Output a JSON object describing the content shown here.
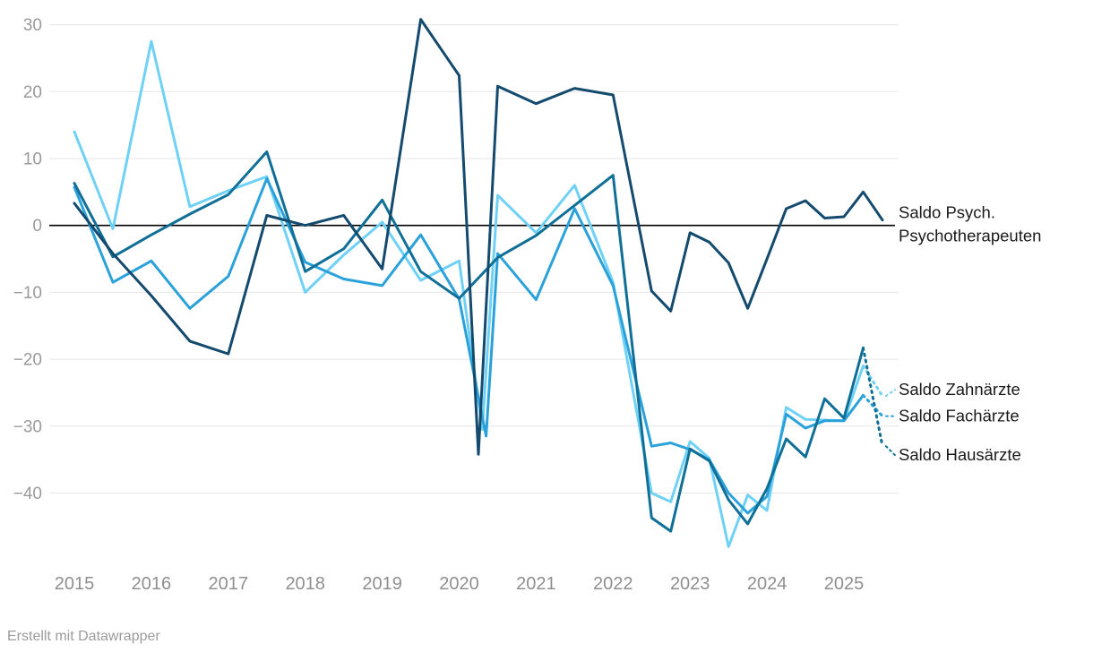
{
  "footer": {
    "attribution": "Erstellt mit Datawrapper"
  },
  "colors": {
    "background": "#ffffff",
    "gridline": "#e6e6e6",
    "zero_line": "#000000",
    "axis_tick_label": "#9a9a9a",
    "x_tick_label": "#8f8f8f",
    "series_label_text": "#1a1a1a"
  },
  "chart_data": {
    "type": "line",
    "title": "",
    "legend_position": "right-direct-labels",
    "grid": true,
    "x_axis": {
      "tick_values": [
        2015,
        2016,
        2017,
        2018,
        2019,
        2020,
        2021,
        2022,
        2023,
        2024,
        2025
      ],
      "tick_labels": [
        "2015",
        "2016",
        "2017",
        "2018",
        "2019",
        "2020",
        "2021",
        "2022",
        "2023",
        "2024",
        "2025"
      ],
      "range": [
        2014.67,
        2025.85
      ]
    },
    "y_axis": {
      "tick_values": [
        30,
        20,
        10,
        0,
        -10,
        -20,
        -30,
        -40
      ],
      "tick_labels": [
        "30",
        "20",
        "10",
        "0",
        "−10",
        "−20",
        "−30",
        "−40"
      ],
      "range": [
        -49,
        31
      ],
      "zero_line": true
    },
    "series": [
      {
        "id": "zahnaerzte",
        "name": "Saldo Zahnärzte",
        "label_lines": [
          "Saldo Zahnärzte"
        ],
        "color": "#6FD1F6",
        "dashed_last_segment": true,
        "points": [
          [
            2015,
            14
          ],
          [
            2015.5,
            -0.5
          ],
          [
            2016,
            27.5
          ],
          [
            2016.5,
            2.8
          ],
          [
            2017,
            5.2
          ],
          [
            2017.5,
            7.3
          ],
          [
            2018,
            -10
          ],
          [
            2018.5,
            -4.4
          ],
          [
            2019,
            0.5
          ],
          [
            2019.5,
            -8.2
          ],
          [
            2020,
            -5.3
          ],
          [
            2020.3,
            -30.5
          ],
          [
            2020.5,
            4.5
          ],
          [
            2021,
            -1.1
          ],
          [
            2021.5,
            6
          ],
          [
            2022,
            -8.5
          ],
          [
            2022.5,
            -40
          ],
          [
            2022.75,
            -41.3
          ],
          [
            2023,
            -32.3
          ],
          [
            2023.25,
            -34.8
          ],
          [
            2023.5,
            -48
          ],
          [
            2023.75,
            -40.3
          ],
          [
            2024,
            -42.6
          ],
          [
            2024.25,
            -27.2
          ],
          [
            2024.5,
            -29
          ],
          [
            2025,
            -29.2
          ],
          [
            2025.25,
            -21
          ],
          [
            2025.5,
            -25.5
          ]
        ]
      },
      {
        "id": "fachaerzte",
        "name": "Saldo Fachärzte",
        "label_lines": [
          "Saldo Fachärzte"
        ],
        "color": "#2BA1DA",
        "dashed_last_segment": true,
        "points": [
          [
            2015,
            5.7
          ],
          [
            2015.5,
            -8.5
          ],
          [
            2016,
            -5.3
          ],
          [
            2016.5,
            -12.4
          ],
          [
            2017,
            -7.6
          ],
          [
            2017.5,
            7
          ],
          [
            2018,
            -5.5
          ],
          [
            2018.5,
            -8
          ],
          [
            2019,
            -9
          ],
          [
            2019.5,
            -1.4
          ],
          [
            2020,
            -11
          ],
          [
            2020.35,
            -31.5
          ],
          [
            2020.5,
            -4.2
          ],
          [
            2021,
            -11.1
          ],
          [
            2021.5,
            2.5
          ],
          [
            2022,
            -9
          ],
          [
            2022.5,
            -33
          ],
          [
            2022.75,
            -32.5
          ],
          [
            2023,
            -33.5
          ],
          [
            2023.25,
            -35
          ],
          [
            2023.5,
            -40
          ],
          [
            2023.75,
            -43
          ],
          [
            2024,
            -40.5
          ],
          [
            2024.25,
            -28.2
          ],
          [
            2024.5,
            -30.3
          ],
          [
            2024.75,
            -29.2
          ],
          [
            2025,
            -29.2
          ],
          [
            2025.25,
            -25.4
          ],
          [
            2025.5,
            -28.5
          ]
        ]
      },
      {
        "id": "hausaerzte",
        "name": "Saldo Hausärzte",
        "label_lines": [
          "Saldo Hausärzte"
        ],
        "color": "#0F6F96",
        "dashed_last_segment": true,
        "points": [
          [
            2015,
            6.3
          ],
          [
            2015.5,
            -4.7
          ],
          [
            2016,
            -1.4
          ],
          [
            2016.5,
            1.7
          ],
          [
            2017,
            4.6
          ],
          [
            2017.5,
            11
          ],
          [
            2018,
            -6.9
          ],
          [
            2018.5,
            -3.5
          ],
          [
            2019,
            3.8
          ],
          [
            2019.5,
            -6.9
          ],
          [
            2020,
            -10.9
          ],
          [
            2020.5,
            -4.8
          ],
          [
            2021,
            -1.5
          ],
          [
            2021.5,
            3
          ],
          [
            2022,
            7.5
          ],
          [
            2022.5,
            -43.7
          ],
          [
            2022.75,
            -45.7
          ],
          [
            2023,
            -33.4
          ],
          [
            2023.25,
            -35.2
          ],
          [
            2023.5,
            -41
          ],
          [
            2023.75,
            -44.6
          ],
          [
            2024,
            -39.3
          ],
          [
            2024.25,
            -31.9
          ],
          [
            2024.5,
            -34.6
          ],
          [
            2024.75,
            -25.9
          ],
          [
            2025,
            -28.8
          ],
          [
            2025.25,
            -18.3
          ],
          [
            2025.5,
            -33
          ]
        ]
      },
      {
        "id": "psychotherapeuten",
        "name": "Saldo Psych. Psychotherapeuten",
        "label_lines": [
          "Saldo Psych.",
          "Psychotherapeuten"
        ],
        "color": "#134A6E",
        "dashed_last_segment": false,
        "points": [
          [
            2015,
            3.3
          ],
          [
            2015.5,
            -4.2
          ],
          [
            2016,
            -10.5
          ],
          [
            2016.5,
            -17.3
          ],
          [
            2017,
            -19.2
          ],
          [
            2017.5,
            1.5
          ],
          [
            2018,
            0
          ],
          [
            2018.5,
            1.5
          ],
          [
            2019,
            -6.5
          ],
          [
            2019.5,
            30.8
          ],
          [
            2020,
            22.4
          ],
          [
            2020.25,
            -34.2
          ],
          [
            2020.5,
            20.8
          ],
          [
            2021,
            18.2
          ],
          [
            2021.5,
            20.5
          ],
          [
            2022,
            19.5
          ],
          [
            2022.5,
            -9.8
          ],
          [
            2022.75,
            -12.8
          ],
          [
            2023,
            -1.1
          ],
          [
            2023.25,
            -2.5
          ],
          [
            2023.5,
            -5.6
          ],
          [
            2023.75,
            -12.4
          ],
          [
            2024,
            -5
          ],
          [
            2024.25,
            2.5
          ],
          [
            2024.5,
            3.7
          ],
          [
            2024.75,
            1.1
          ],
          [
            2025,
            1.3
          ],
          [
            2025.25,
            5
          ],
          [
            2025.5,
            0.8
          ]
        ]
      }
    ]
  }
}
